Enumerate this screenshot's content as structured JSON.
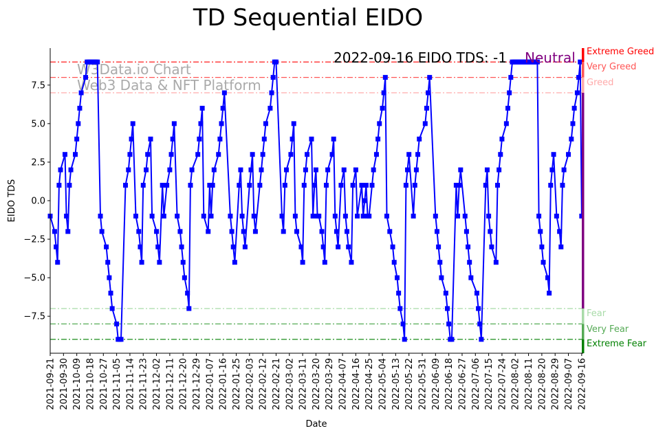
{
  "chart_data": {
    "type": "line",
    "title": "TD Sequential EIDO",
    "xlabel": "Date",
    "ylabel": "EIDO TDS",
    "ylim": [
      -9.9,
      9.9
    ],
    "xlim_days": [
      0,
      361
    ],
    "grid": false,
    "yticks": [
      -7.5,
      -5.0,
      -2.5,
      0.0,
      2.5,
      5.0,
      7.5
    ],
    "ytick_labels": [
      "−7.5",
      "−5.0",
      "−2.5",
      "0.0",
      "2.5",
      "5.0",
      "7.5"
    ],
    "xtick_labels": [
      "2021-09-21",
      "2021-09-30",
      "2021-10-09",
      "2021-10-18",
      "2021-10-27",
      "2021-11-05",
      "2021-11-14",
      "2021-11-23",
      "2021-12-02",
      "2021-12-11",
      "2021-12-20",
      "2021-12-29",
      "2022-01-07",
      "2022-01-16",
      "2022-01-25",
      "2022-02-03",
      "2022-02-12",
      "2022-02-21",
      "2022-03-02",
      "2022-03-11",
      "2022-03-20",
      "2022-03-29",
      "2022-04-07",
      "2022-04-16",
      "2022-04-25",
      "2022-05-04",
      "2022-05-13",
      "2022-05-22",
      "2022-05-31",
      "2022-06-09",
      "2022-06-18",
      "2022-06-27",
      "2022-07-06",
      "2022-07-15",
      "2022-07-24",
      "2022-08-02",
      "2022-08-11",
      "2022-08-20",
      "2022-08-29",
      "2022-09-07",
      "2022-09-16"
    ],
    "xtick_step_days": 9,
    "series": [
      {
        "name": "EIDO TDS",
        "color": "#0000ff",
        "marker": "square",
        "points": [
          [
            0,
            -1
          ],
          [
            3,
            -2
          ],
          [
            4,
            -3
          ],
          [
            5,
            -4
          ],
          [
            6,
            1
          ],
          [
            7,
            2
          ],
          [
            10,
            3
          ],
          [
            11,
            -1
          ],
          [
            12,
            -2
          ],
          [
            13,
            1
          ],
          [
            14,
            2
          ],
          [
            17,
            3
          ],
          [
            18,
            4
          ],
          [
            19,
            5
          ],
          [
            20,
            6
          ],
          [
            21,
            7
          ],
          [
            24,
            8
          ],
          [
            25,
            9
          ],
          [
            26,
            9
          ],
          [
            27,
            9
          ],
          [
            28,
            9
          ],
          [
            29,
            9
          ],
          [
            30,
            9
          ],
          [
            31,
            9
          ],
          [
            32,
            9
          ],
          [
            34,
            -1
          ],
          [
            35,
            -2
          ],
          [
            38,
            -3
          ],
          [
            39,
            -4
          ],
          [
            40,
            -5
          ],
          [
            41,
            -6
          ],
          [
            42,
            -7
          ],
          [
            45,
            -8
          ],
          [
            46,
            -9
          ],
          [
            47,
            -9
          ],
          [
            48,
            -9
          ],
          [
            51,
            1
          ],
          [
            53,
            2
          ],
          [
            54,
            3
          ],
          [
            55,
            4
          ],
          [
            56,
            5
          ],
          [
            58,
            -1
          ],
          [
            60,
            -2
          ],
          [
            61,
            -3
          ],
          [
            62,
            -4
          ],
          [
            63,
            1
          ],
          [
            65,
            2
          ],
          [
            66,
            3
          ],
          [
            68,
            4
          ],
          [
            69,
            -1
          ],
          [
            72,
            -2
          ],
          [
            73,
            -3
          ],
          [
            74,
            -4
          ],
          [
            76,
            1
          ],
          [
            77,
            -1
          ],
          [
            79,
            1
          ],
          [
            81,
            2
          ],
          [
            82,
            3
          ],
          [
            83,
            4
          ],
          [
            84,
            5
          ],
          [
            86,
            -1
          ],
          [
            88,
            -2
          ],
          [
            89,
            -3
          ],
          [
            90,
            -4
          ],
          [
            91,
            -5
          ],
          [
            93,
            -6
          ],
          [
            94,
            -7
          ],
          [
            95,
            1
          ],
          [
            96,
            2
          ],
          [
            100,
            3
          ],
          [
            101,
            4
          ],
          [
            102,
            5
          ],
          [
            103,
            6
          ],
          [
            104,
            -1
          ],
          [
            107,
            -2
          ],
          [
            108,
            1
          ],
          [
            109,
            -1
          ],
          [
            110,
            1
          ],
          [
            111,
            2
          ],
          [
            114,
            3
          ],
          [
            115,
            4
          ],
          [
            116,
            5
          ],
          [
            117,
            6
          ],
          [
            118,
            7
          ],
          [
            122,
            -1
          ],
          [
            123,
            -2
          ],
          [
            124,
            -3
          ],
          [
            125,
            -4
          ],
          [
            128,
            1
          ],
          [
            129,
            2
          ],
          [
            130,
            -1
          ],
          [
            131,
            -2
          ],
          [
            132,
            -3
          ],
          [
            135,
            1
          ],
          [
            136,
            2
          ],
          [
            137,
            3
          ],
          [
            138,
            -1
          ],
          [
            139,
            -2
          ],
          [
            142,
            1
          ],
          [
            143,
            2
          ],
          [
            144,
            3
          ],
          [
            145,
            4
          ],
          [
            146,
            5
          ],
          [
            149,
            6
          ],
          [
            150,
            7
          ],
          [
            151,
            8
          ],
          [
            152,
            9
          ],
          [
            153,
            9
          ],
          [
            157,
            -1
          ],
          [
            158,
            -2
          ],
          [
            159,
            1
          ],
          [
            160,
            2
          ],
          [
            163,
            3
          ],
          [
            164,
            4
          ],
          [
            165,
            5
          ],
          [
            166,
            -1
          ],
          [
            167,
            -2
          ],
          [
            170,
            -3
          ],
          [
            171,
            -4
          ],
          [
            172,
            1
          ],
          [
            173,
            2
          ],
          [
            174,
            3
          ],
          [
            177,
            4
          ],
          [
            178,
            -1
          ],
          [
            179,
            1
          ],
          [
            180,
            2
          ],
          [
            181,
            -1
          ],
          [
            182,
            -1
          ],
          [
            184,
            -2
          ],
          [
            185,
            -3
          ],
          [
            186,
            -4
          ],
          [
            187,
            1
          ],
          [
            188,
            2
          ],
          [
            191,
            3
          ],
          [
            192,
            4
          ],
          [
            193,
            -1
          ],
          [
            194,
            -2
          ],
          [
            195,
            -3
          ],
          [
            197,
            1
          ],
          [
            199,
            2
          ],
          [
            200,
            -1
          ],
          [
            201,
            -2
          ],
          [
            202,
            -3
          ],
          [
            204,
            -4
          ],
          [
            205,
            1
          ],
          [
            207,
            2
          ],
          [
            208,
            -1
          ],
          [
            211,
            1
          ],
          [
            212,
            -1
          ],
          [
            213,
            0
          ],
          [
            214,
            1
          ],
          [
            215,
            -1
          ],
          [
            216,
            -1
          ],
          [
            218,
            1
          ],
          [
            219,
            2
          ],
          [
            221,
            3
          ],
          [
            222,
            4
          ],
          [
            223,
            5
          ],
          [
            225,
            6
          ],
          [
            226,
            7
          ],
          [
            227,
            8
          ],
          [
            228,
            -1
          ],
          [
            230,
            -2
          ],
          [
            232,
            -3
          ],
          [
            233,
            -4
          ],
          [
            235,
            -5
          ],
          [
            236,
            -6
          ],
          [
            237,
            -7
          ],
          [
            239,
            -8
          ],
          [
            240,
            -9
          ],
          [
            241,
            1
          ],
          [
            242,
            2
          ],
          [
            243,
            3
          ],
          [
            246,
            -1
          ],
          [
            247,
            1
          ],
          [
            248,
            2
          ],
          [
            249,
            3
          ],
          [
            250,
            4
          ],
          [
            254,
            5
          ],
          [
            255,
            6
          ],
          [
            256,
            7
          ],
          [
            257,
            8
          ],
          [
            261,
            -1
          ],
          [
            262,
            -2
          ],
          [
            263,
            -3
          ],
          [
            264,
            -4
          ],
          [
            265,
            -5
          ],
          [
            268,
            -6
          ],
          [
            269,
            -7
          ],
          [
            270,
            -8
          ],
          [
            271,
            -9
          ],
          [
            272,
            -9
          ],
          [
            275,
            1
          ],
          [
            276,
            -1
          ],
          [
            277,
            1
          ],
          [
            278,
            2
          ],
          [
            281,
            -1
          ],
          [
            282,
            -2
          ],
          [
            283,
            -3
          ],
          [
            284,
            -4
          ],
          [
            285,
            -5
          ],
          [
            289,
            -6
          ],
          [
            290,
            -7
          ],
          [
            291,
            -8
          ],
          [
            292,
            -9
          ],
          [
            295,
            1
          ],
          [
            296,
            2
          ],
          [
            297,
            -1
          ],
          [
            298,
            -2
          ],
          [
            299,
            -3
          ],
          [
            302,
            -4
          ],
          [
            303,
            1
          ],
          [
            304,
            2
          ],
          [
            305,
            3
          ],
          [
            306,
            4
          ],
          [
            309,
            5
          ],
          [
            310,
            6
          ],
          [
            311,
            7
          ],
          [
            312,
            8
          ],
          [
            313,
            9
          ],
          [
            314,
            9
          ],
          [
            315,
            9
          ],
          [
            316,
            9
          ],
          [
            317,
            9
          ],
          [
            318,
            9
          ],
          [
            319,
            9
          ],
          [
            320,
            9
          ],
          [
            321,
            9
          ],
          [
            322,
            9
          ],
          [
            323,
            9
          ],
          [
            324,
            9
          ],
          [
            325,
            9
          ],
          [
            326,
            9
          ],
          [
            327,
            9
          ],
          [
            328,
            9
          ],
          [
            329,
            9
          ],
          [
            330,
            9
          ],
          [
            331,
            -1
          ],
          [
            332,
            -2
          ],
          [
            333,
            -3
          ],
          [
            334,
            -4
          ],
          [
            337,
            -5
          ],
          [
            338,
            -6
          ],
          [
            339,
            1
          ],
          [
            340,
            2
          ],
          [
            341,
            3
          ],
          [
            343,
            -1
          ],
          [
            345,
            -2
          ],
          [
            346,
            -3
          ],
          [
            347,
            1
          ],
          [
            348,
            2
          ],
          [
            351,
            3
          ],
          [
            353,
            4
          ],
          [
            354,
            5
          ],
          [
            355,
            6
          ],
          [
            357,
            7
          ],
          [
            358,
            8
          ],
          [
            359,
            9
          ],
          [
            360,
            -1
          ]
        ]
      }
    ],
    "levels": [
      {
        "label": "Extreme Greed",
        "value": 9,
        "color": "#ff0000"
      },
      {
        "label": "Very Greed",
        "value": 8,
        "color": "#ff5555"
      },
      {
        "label": "Greed",
        "value": 7,
        "color": "#ffaaaa"
      },
      {
        "label": "Fear",
        "value": -7,
        "color": "#a8dba8"
      },
      {
        "label": "Very Fear",
        "value": -8,
        "color": "#55aa55"
      },
      {
        "label": "Extreme Fear",
        "value": -9,
        "color": "#008000"
      }
    ],
    "neutral_color": "#800080",
    "annotation": {
      "text": "2022-09-16 EIDO TDS: -1",
      "status": "Neutral",
      "status_color": "#800080"
    },
    "watermark": {
      "line1": "W3Data.io Chart",
      "line2": "Web3 Data & NFT Platform"
    }
  }
}
